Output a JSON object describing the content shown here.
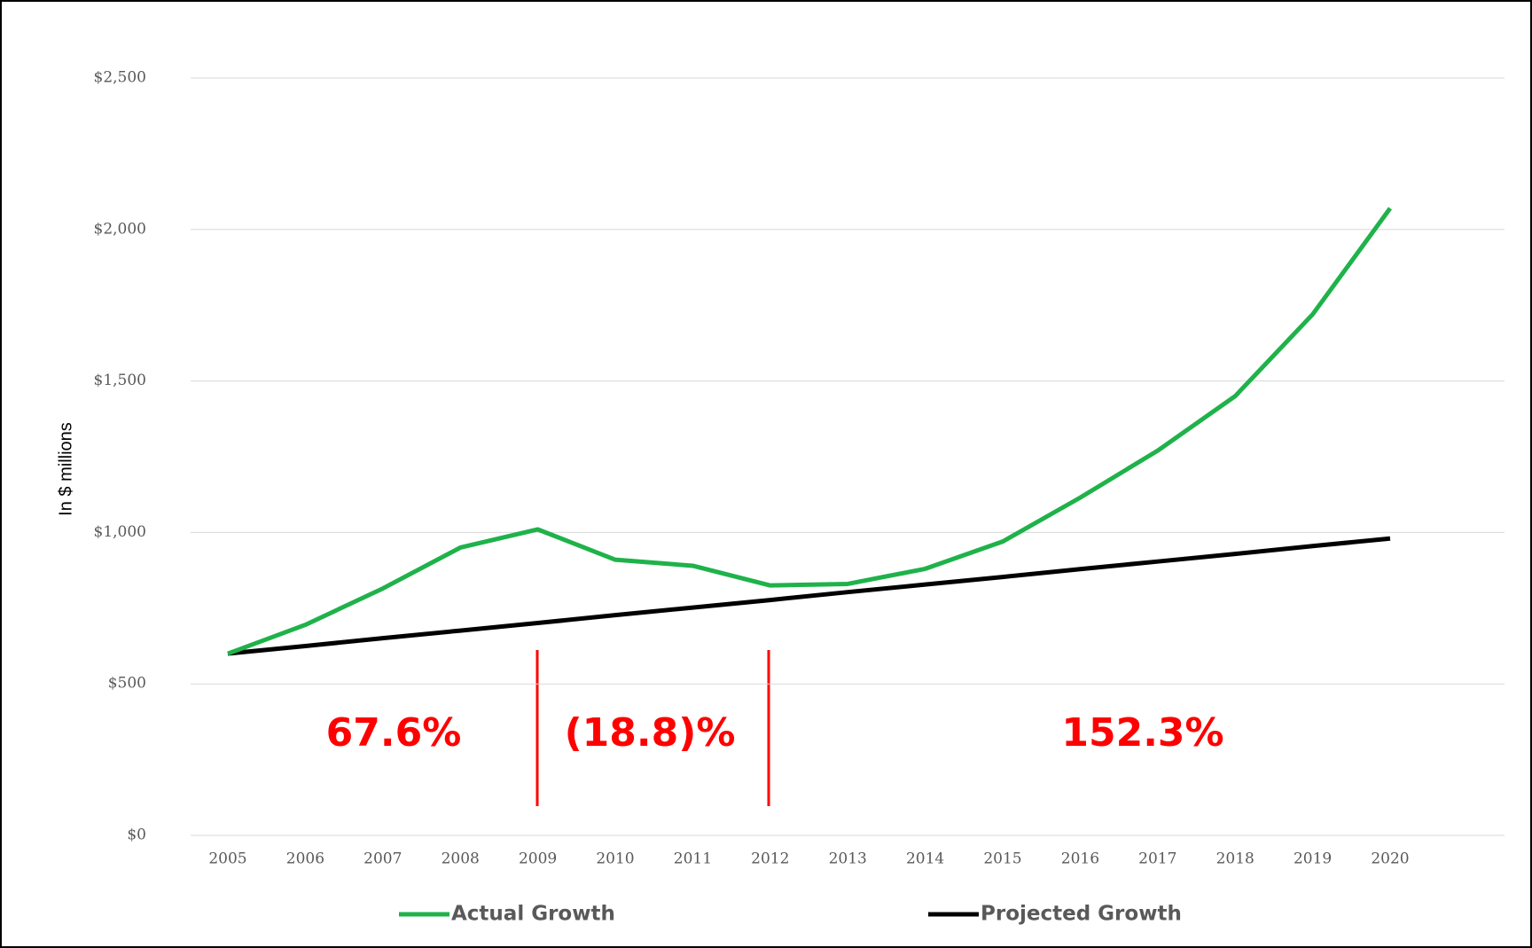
{
  "chart_data": {
    "type": "line",
    "ylabel": "In $ millions",
    "categories": [
      "2005",
      "2006",
      "2007",
      "2008",
      "2009",
      "2010",
      "2011",
      "2012",
      "2013",
      "2014",
      "2015",
      "2016",
      "2017",
      "2018",
      "2019",
      "2020"
    ],
    "series": [
      {
        "name": "Actual Growth",
        "color": "#1fb24a",
        "values": [
          600,
          695,
          815,
          950,
          1010,
          910,
          890,
          825,
          830,
          880,
          970,
          1115,
          1270,
          1450,
          1720,
          2070
        ]
      },
      {
        "name": "Projected Growth",
        "color": "#000000",
        "values": [
          600,
          625,
          651,
          676,
          701,
          727,
          752,
          777,
          803,
          828,
          853,
          879,
          904,
          929,
          955,
          980
        ]
      }
    ],
    "ylim": [
      0,
      2500
    ],
    "yticks": [
      {
        "value": 0,
        "label": "$0"
      },
      {
        "value": 500,
        "label": "$500"
      },
      {
        "value": 1000,
        "label": "$1,000"
      },
      {
        "value": 1500,
        "label": "$1,500"
      },
      {
        "value": 2000,
        "label": "$2,000"
      },
      {
        "value": 2500,
        "label": "$2,500"
      }
    ],
    "grid": true,
    "annotations": [
      "67.6%",
      "(18.8)%",
      "152.3%"
    ]
  }
}
